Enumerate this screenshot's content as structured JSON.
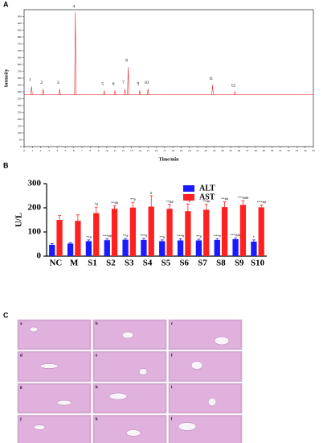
{
  "chart_data": [
    {
      "type": "chromatogram",
      "panel_label": "A",
      "xlabel": "Time/min",
      "ylabel": "Intensity",
      "xlim": [
        0,
        35
      ],
      "xticks": [
        0,
        1,
        2,
        3,
        4,
        5,
        6,
        7,
        8,
        9,
        10,
        11,
        12,
        13,
        14,
        15,
        16,
        17,
        18,
        19,
        20,
        21,
        22,
        23,
        24,
        25,
        26,
        27,
        28,
        29,
        30,
        31,
        32,
        33,
        34,
        35
      ],
      "ylim": [
        0,
        1000
      ],
      "yticks": [
        0,
        50,
        100,
        150,
        200,
        250,
        300,
        350,
        400,
        450,
        500,
        550,
        600,
        650,
        700,
        750,
        800,
        850,
        900,
        950
      ],
      "baseline": 380,
      "color": "#e03030",
      "peak_labels": [
        "1",
        "2",
        "3",
        "4",
        "5",
        "6",
        "7",
        "8",
        "9",
        "10",
        "11",
        "12"
      ],
      "x": [
        0.9,
        2.3,
        4.3,
        6.2,
        9.7,
        11,
        12.2,
        12.6,
        14,
        15,
        22.8,
        25.5
      ],
      "values": [
        440,
        420,
        420,
        980,
        410,
        410,
        420,
        580,
        410,
        420,
        450,
        400
      ]
    },
    {
      "type": "bar",
      "panel_label": "B",
      "ylabel": "U/L",
      "categories": [
        "NC",
        "M",
        "S1",
        "S2",
        "S3",
        "S4",
        "S5",
        "S6",
        "S7",
        "S8",
        "S9",
        "S10"
      ],
      "ylim": [
        0,
        300
      ],
      "yticks": [
        0,
        100,
        200,
        300
      ],
      "legend": "top-right",
      "series": [
        {
          "name": "ALT",
          "color": "#1a1aff",
          "values": [
            47,
            52,
            62,
            66,
            68,
            67,
            62,
            65,
            65,
            67,
            70,
            60
          ],
          "errors": [
            5,
            4,
            5,
            5,
            5,
            6,
            5,
            6,
            5,
            5,
            5,
            7
          ],
          "annotations": [
            null,
            null,
            "**#",
            "***##",
            "**#",
            "***#",
            "**#",
            "***#",
            "**#",
            "***#",
            "***###",
            "*"
          ]
        },
        {
          "name": "AST",
          "color": "#ff2020",
          "values": [
            150,
            146,
            178,
            196,
            201,
            205,
            196,
            186,
            192,
            203,
            212,
            202
          ],
          "errors": [
            18,
            25,
            25,
            12,
            22,
            45,
            18,
            30,
            23,
            22,
            18,
            10
          ],
          "annotations": [
            null,
            null,
            "*#",
            "**##",
            "**#",
            "#",
            "**##",
            "**#",
            "**##",
            "**##",
            "***###",
            "***##"
          ]
        }
      ]
    }
  ],
  "panel_c": {
    "label": "C",
    "tiles": [
      "a",
      "b",
      "c",
      "d",
      "e",
      "f",
      "g",
      "h",
      "i",
      "j",
      "k",
      "l"
    ]
  }
}
